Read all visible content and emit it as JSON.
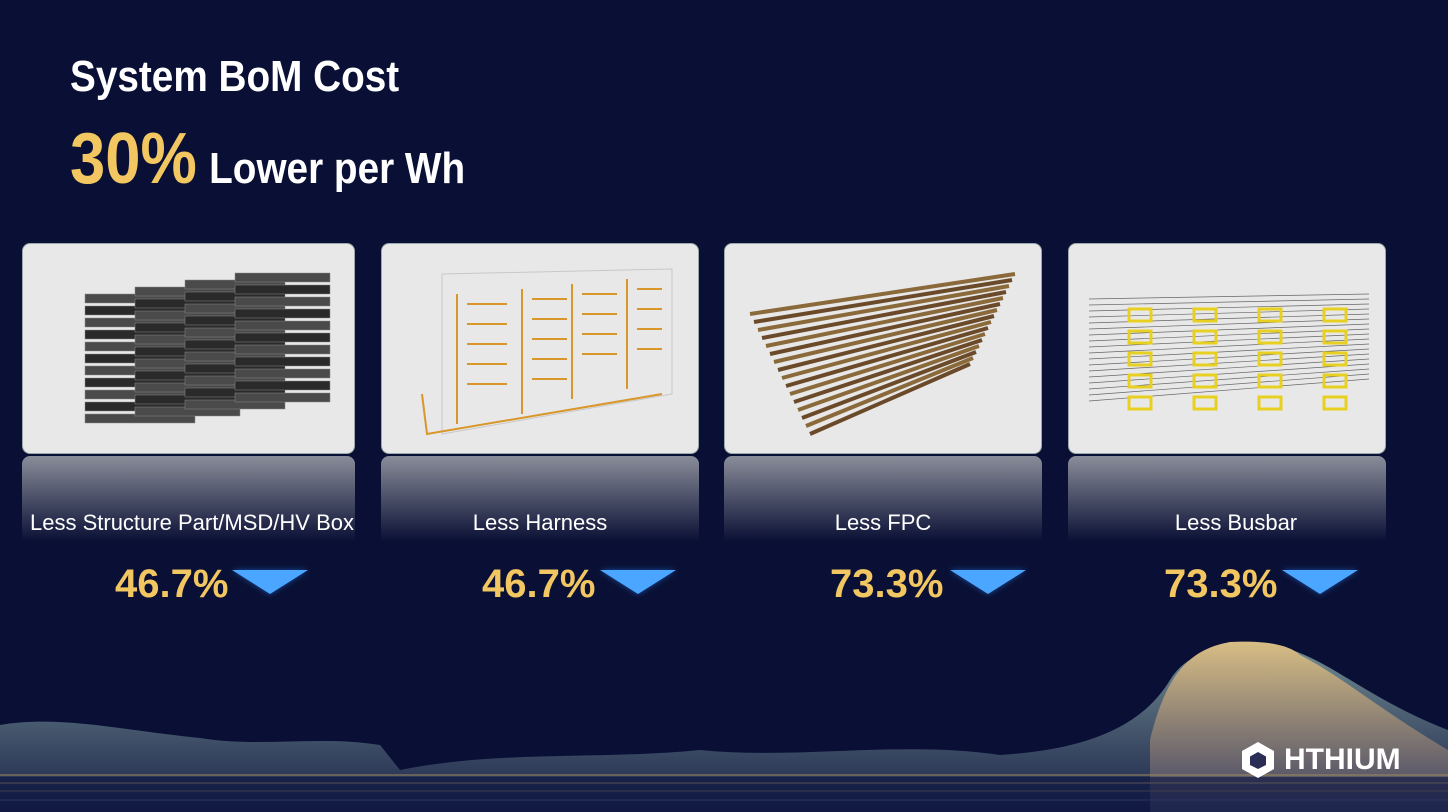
{
  "header": {
    "title": "System BoM Cost",
    "highlight": "30%",
    "subtitle": "Lower per Wh"
  },
  "items": [
    {
      "label": "Less Structure Part/MSD/HV Box",
      "value": "46.7%",
      "image": "stacked-battery-modules"
    },
    {
      "label": "Less Harness",
      "value": "46.7%",
      "image": "wire-harness"
    },
    {
      "label": "Less FPC",
      "value": "73.3%",
      "image": "fpc-strips"
    },
    {
      "label": "Less Busbar",
      "value": "73.3%",
      "image": "busbar-array"
    }
  ],
  "colors": {
    "background": "#0a1035",
    "accent": "#f2c660",
    "arrow": "#4aa6ff"
  },
  "logo": {
    "text": "HTHIUM"
  }
}
